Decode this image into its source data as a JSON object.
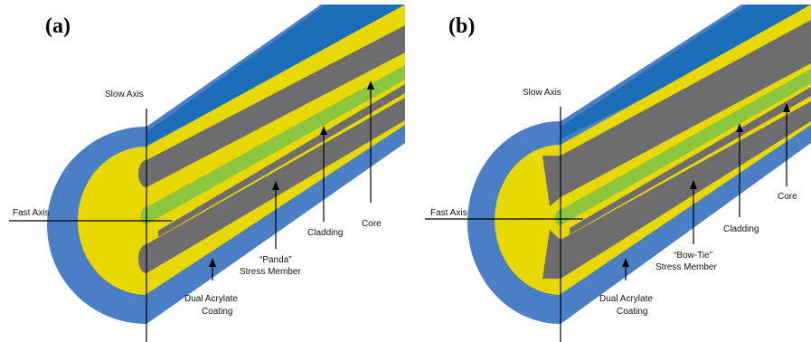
{
  "panels": [
    {
      "label": "(a)",
      "slow_axis": "Slow Axis",
      "fast_axis": "Fast Axis",
      "core": "Core",
      "cladding": "Cladding",
      "stress_line1": "“Panda”",
      "stress_line2": "Stress Member",
      "coating_line1": "Dual Acrylate",
      "coating_line2": "Coating"
    },
    {
      "label": "(b)",
      "slow_axis": "Slow Axis",
      "fast_axis": "Fast Axis",
      "core": "Core",
      "cladding": "Cladding",
      "stress_line1": "“Bow-Tie”",
      "stress_line2": "Stress Member",
      "coating_line1": "Dual Acrylate",
      "coating_line2": "Coating"
    }
  ],
  "colors": {
    "coating": "#4a7fc6",
    "coating_top": "#1c6db7",
    "cladding": "#e8d800",
    "stress_member": "#6d6d6f",
    "core": "#8cc63e"
  }
}
